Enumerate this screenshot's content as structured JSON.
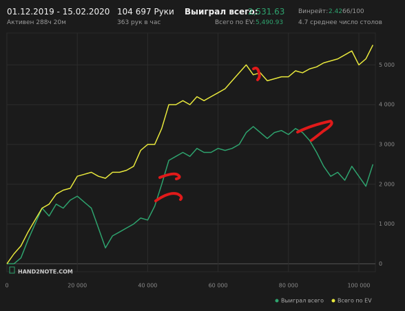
{
  "header": {
    "date_range": "01.12.2019 - 15.02.2020",
    "active": "Активен 288ч 20м",
    "hands": "104 697 Руки",
    "hands_per_hour": "363 рук в час",
    "won_label": "Выиграл всего:",
    "won_value": "2,531.63",
    "ev_label": "Всего по EV:",
    "ev_value": "5,490.93",
    "winrate_label": "Винрейт:",
    "winrate_value": "2.42",
    "winrate_extra": "66/100",
    "tables": "4.7 среднее число столов"
  },
  "chart_data": {
    "type": "line",
    "logo": "HAND2NOTE.COM",
    "x": [
      0,
      2000,
      4000,
      6000,
      8000,
      10000,
      12000,
      14000,
      16000,
      18000,
      20000,
      22000,
      24000,
      26000,
      28000,
      30000,
      32000,
      34000,
      36000,
      38000,
      40000,
      42000,
      44000,
      46000,
      48000,
      50000,
      52000,
      54000,
      56000,
      58000,
      60000,
      62000,
      64000,
      66000,
      68000,
      70000,
      72000,
      74000,
      76000,
      78000,
      80000,
      82000,
      84000,
      86000,
      88000,
      90000,
      92000,
      94000,
      96000,
      98000,
      100000,
      102000,
      104000
    ],
    "series": [
      {
        "name": "Выиграл всего",
        "color": "#2ea36e",
        "values": [
          0,
          0,
          150,
          600,
          1000,
          1400,
          1200,
          1500,
          1400,
          1600,
          1700,
          1550,
          1400,
          900,
          400,
          700,
          800,
          900,
          1000,
          1150,
          1100,
          1450,
          2000,
          2600,
          2700,
          2800,
          2700,
          2900,
          2800,
          2800,
          2900,
          2850,
          2900,
          3000,
          3300,
          3450,
          3300,
          3150,
          3300,
          3350,
          3250,
          3400,
          3300,
          3100,
          2800,
          2450,
          2200,
          2300,
          2100,
          2450,
          2200,
          1950,
          2500
        ]
      },
      {
        "name": "Всего по EV",
        "color": "#e8e83c",
        "values": [
          0,
          250,
          450,
          800,
          1100,
          1400,
          1500,
          1750,
          1850,
          1900,
          2200,
          2250,
          2300,
          2200,
          2150,
          2300,
          2300,
          2350,
          2450,
          2850,
          3000,
          3000,
          3400,
          4000,
          4000,
          4100,
          4000,
          4200,
          4100,
          4200,
          4300,
          4400,
          4600,
          4800,
          5000,
          4750,
          4800,
          4600,
          4650,
          4700,
          4700,
          4850,
          4800,
          4900,
          4950,
          5050,
          5100,
          5150,
          5250,
          5350,
          5000,
          5150,
          5500
        ]
      }
    ],
    "xlim": [
      0,
      104697
    ],
    "ylim": [
      -200,
      5800
    ],
    "xticks": [
      0,
      {
        "value": 20000,
        "label": "20 000"
      },
      {
        "value": 40000,
        "label": "40 000"
      },
      {
        "value": 60000,
        "label": "60 000"
      },
      {
        "value": 80000,
        "label": "80 000"
      },
      {
        "value": 100000,
        "label": "100 000"
      }
    ],
    "yticks": [
      0,
      {
        "value": 1000,
        "label": "1 000"
      },
      {
        "value": 2000,
        "label": "2 000"
      },
      {
        "value": 3000,
        "label": "3 000"
      },
      {
        "value": 4000,
        "label": "4 000"
      },
      {
        "value": 5000,
        "label": "5 000"
      }
    ],
    "grid": true
  }
}
